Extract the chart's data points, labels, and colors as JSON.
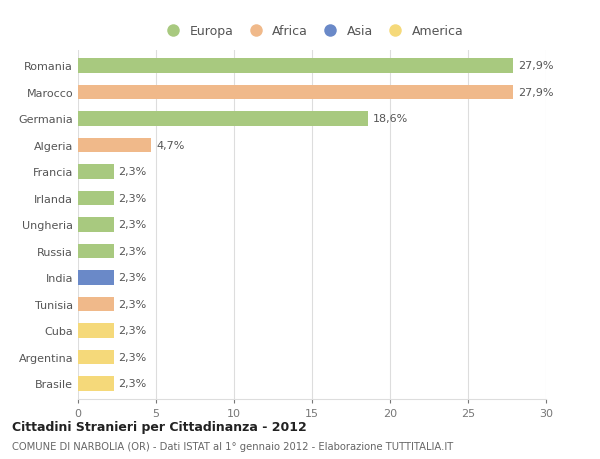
{
  "countries": [
    "Romania",
    "Marocco",
    "Germania",
    "Algeria",
    "Francia",
    "Irlanda",
    "Ungheria",
    "Russia",
    "India",
    "Tunisia",
    "Cuba",
    "Argentina",
    "Brasile"
  ],
  "values": [
    27.9,
    27.9,
    18.6,
    4.7,
    2.3,
    2.3,
    2.3,
    2.3,
    2.3,
    2.3,
    2.3,
    2.3,
    2.3
  ],
  "labels": [
    "27,9%",
    "27,9%",
    "18,6%",
    "4,7%",
    "2,3%",
    "2,3%",
    "2,3%",
    "2,3%",
    "2,3%",
    "2,3%",
    "2,3%",
    "2,3%",
    "2,3%"
  ],
  "colors": [
    "#a8c97f",
    "#f0b98a",
    "#a8c97f",
    "#f0b98a",
    "#a8c97f",
    "#a8c97f",
    "#a8c97f",
    "#a8c97f",
    "#6a89c8",
    "#f0b98a",
    "#f5d97a",
    "#f5d97a",
    "#f5d97a"
  ],
  "legend_labels": [
    "Europa",
    "Africa",
    "Asia",
    "America"
  ],
  "legend_colors": [
    "#a8c97f",
    "#f0b98a",
    "#6a89c8",
    "#f5d97a"
  ],
  "title": "Cittadini Stranieri per Cittadinanza - 2012",
  "subtitle": "COMUNE DI NARBOLIA (OR) - Dati ISTAT al 1° gennaio 2012 - Elaborazione TUTTITALIA.IT",
  "xlim": [
    0,
    30
  ],
  "xticks": [
    0,
    5,
    10,
    15,
    20,
    25,
    30
  ],
  "background_color": "#ffffff",
  "grid_color": "#dddddd",
  "bar_height": 0.55,
  "label_fontsize": 8,
  "tick_fontsize": 8,
  "legend_fontsize": 9
}
